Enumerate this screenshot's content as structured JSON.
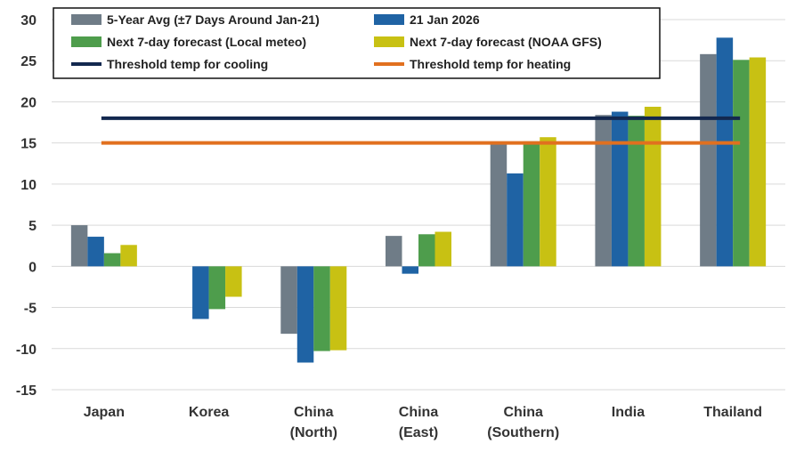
{
  "chart_data": {
    "type": "bar",
    "title": "",
    "xlabel": "",
    "ylabel": "",
    "ylim": [
      -15,
      30
    ],
    "yticks": [
      30,
      25,
      20,
      15,
      10,
      5,
      0,
      -5,
      -10,
      -15
    ],
    "grid": true,
    "legend_position": "top",
    "categories": [
      [
        "Japan"
      ],
      [
        "Korea"
      ],
      [
        "China",
        "(North)"
      ],
      [
        "China",
        "(East)"
      ],
      [
        "China",
        "(Southern)"
      ],
      [
        "India"
      ],
      [
        "Thailand"
      ]
    ],
    "series": [
      {
        "name": "5-Year Avg (±7 Days Around Jan-21)",
        "color": "#6f7c87",
        "values": [
          5.0,
          null,
          -8.2,
          3.7,
          15.0,
          18.4,
          25.8
        ]
      },
      {
        "name": "21 Jan 2026",
        "color": "#1f63a4",
        "values": [
          3.6,
          -6.4,
          -11.7,
          -0.9,
          11.3,
          18.8,
          27.8
        ]
      },
      {
        "name": "Next 7-day forecast (Local meteo)",
        "color": "#4e9d4c",
        "values": [
          1.6,
          -5.2,
          -10.3,
          3.9,
          15.2,
          18.3,
          25.1
        ]
      },
      {
        "name": "Next 7-day forecast (NOAA GFS)",
        "color": "#c8c113",
        "values": [
          2.6,
          -3.7,
          -10.2,
          4.2,
          15.7,
          19.4,
          25.4
        ]
      }
    ],
    "lines": [
      {
        "name": "Threshold temp for cooling",
        "color": "#13284f",
        "value": 18
      },
      {
        "name": "Threshold temp for heating",
        "color": "#e1701f",
        "value": 15
      }
    ]
  }
}
